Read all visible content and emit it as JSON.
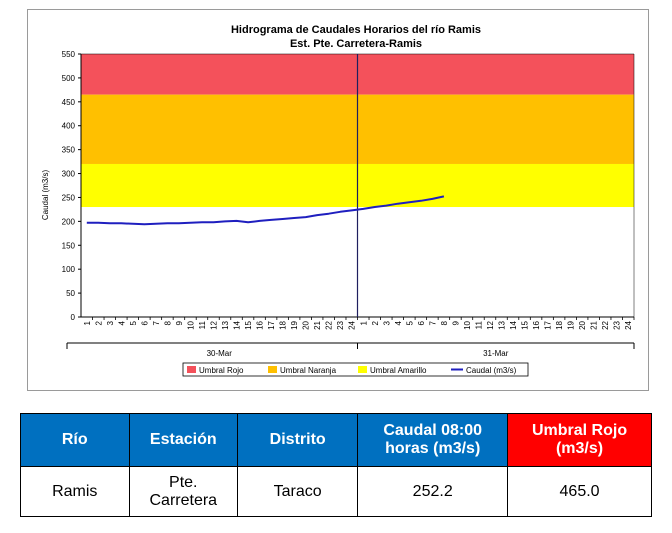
{
  "chart_data": {
    "type": "line",
    "title": "Hidrograma de Caudales Horarios del río Ramis",
    "subtitle": "Est. Pte. Carretera-Ramis",
    "ylabel": "Caudal  (m3/s)",
    "xlabel": "",
    "ylim": [
      0,
      550
    ],
    "yticks": [
      "0",
      "50",
      "100",
      "150",
      "200",
      "250",
      "300",
      "350",
      "400",
      "450",
      "500",
      "550"
    ],
    "x_hours": [
      "1",
      "2",
      "3",
      "4",
      "5",
      "6",
      "7",
      "8",
      "9",
      "10",
      "11",
      "12",
      "13",
      "14",
      "15",
      "16",
      "17",
      "18",
      "19",
      "20",
      "21",
      "22",
      "23",
      "24",
      "1",
      "2",
      "3",
      "4",
      "5",
      "6",
      "7",
      "8",
      "9",
      "10",
      "11",
      "12",
      "13",
      "14",
      "15",
      "16",
      "17",
      "18",
      "19",
      "20",
      "21",
      "22",
      "23",
      "24"
    ],
    "day_labels": [
      "30-Mar",
      "31-Mar"
    ],
    "thresholds": [
      {
        "name": "Umbral Rojo",
        "color": "#f4515b",
        "from": 465,
        "to": 550
      },
      {
        "name": "Umbral Naranja",
        "color": "#ffc000",
        "from": 320,
        "to": 465
      },
      {
        "name": "Umbral Amarillo",
        "color": "#ffff00",
        "from": 230,
        "to": 320
      }
    ],
    "series": [
      {
        "name": "Caudal (m3/s)",
        "color": "#1f1fbf",
        "values": [
          197,
          197,
          196,
          196,
          195,
          194,
          195,
          196,
          196,
          197,
          198,
          198,
          200,
          201,
          198,
          201,
          203,
          205,
          207,
          209,
          213,
          216,
          220,
          223,
          226,
          230,
          233,
          237,
          240,
          243,
          247,
          252.2
        ]
      }
    ],
    "current_hour_marker": "24",
    "legend": {
      "placement": "bottom",
      "entries": [
        {
          "label": "Umbral Rojo",
          "color": "#f4515b",
          "kind": "box"
        },
        {
          "label": "Umbral Naranja",
          "color": "#ffc000",
          "kind": "box"
        },
        {
          "label": "Umbral Amarillo",
          "color": "#ffff00",
          "kind": "box"
        },
        {
          "label": "Caudal (m3/s)",
          "color": "#1f1fbf",
          "kind": "line"
        }
      ]
    },
    "grid": false
  },
  "table": {
    "headers": [
      "Río",
      "Estación",
      "Distrito",
      "Caudal 08:00 horas (m3/s)",
      "Umbral Rojo (m3/s)"
    ],
    "rows": [
      [
        "Ramis",
        "Pte. Carretera",
        "Taraco",
        "252.2",
        "465.0"
      ]
    ]
  }
}
